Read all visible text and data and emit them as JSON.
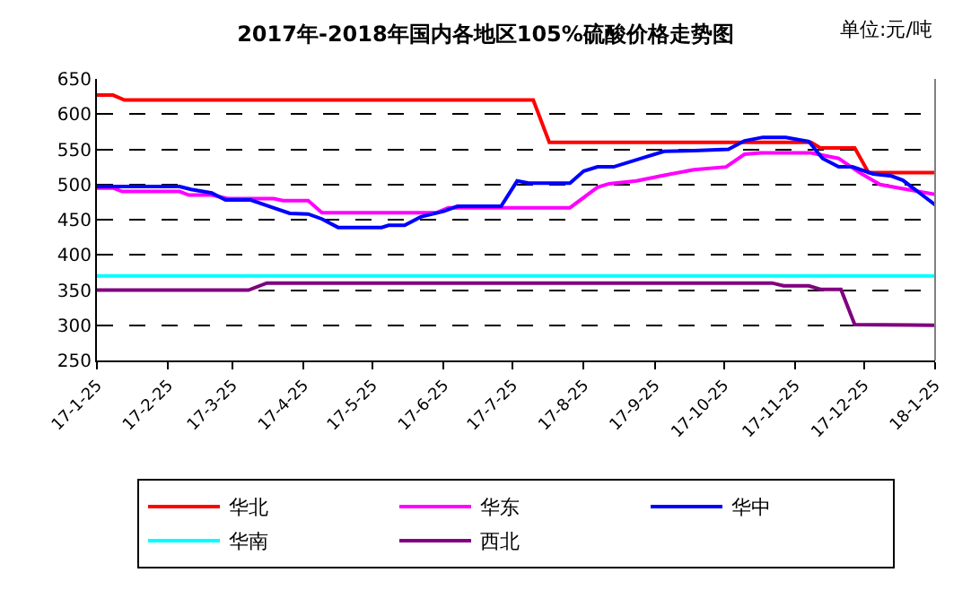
{
  "chart_data": {
    "type": "line",
    "title": "2017年-2018年国内各地区105%硫酸价格走势图",
    "annotations": [
      "单位:元/吨"
    ],
    "xlim": [
      "2017-01-25",
      "2018-01-25"
    ],
    "xticks": [
      {
        "value": "2017-01-25",
        "label": "17-1-25"
      },
      {
        "value": "2017-02-25",
        "label": "17-2-25"
      },
      {
        "value": "2017-03-25",
        "label": "17-3-25"
      },
      {
        "value": "2017-04-25",
        "label": "17-4-25"
      },
      {
        "value": "2017-05-25",
        "label": "17-5-25"
      },
      {
        "value": "2017-06-25",
        "label": "17-6-25"
      },
      {
        "value": "2017-07-25",
        "label": "17-7-25"
      },
      {
        "value": "2017-08-25",
        "label": "17-8-25"
      },
      {
        "value": "2017-09-25",
        "label": "17-9-25"
      },
      {
        "value": "2017-10-25",
        "label": "17-10-25"
      },
      {
        "value": "2017-11-25",
        "label": "17-11-25"
      },
      {
        "value": "2017-12-25",
        "label": "17-12-25"
      },
      {
        "value": "2018-01-25",
        "label": "18-1-25"
      }
    ],
    "ylim": [
      250,
      650
    ],
    "yticks": [
      250,
      300,
      350,
      400,
      450,
      500,
      550,
      600,
      650
    ],
    "grid": "y",
    "legend": "bottom",
    "marker": "none",
    "line_style": "solid",
    "series": [
      {
        "name": "华北",
        "color": "#ff0000",
        "x": [
          "2017-01-25",
          "2017-02-01",
          "2017-02-06",
          "2017-08-03",
          "2017-08-10",
          "2017-12-02",
          "2017-12-06",
          "2017-12-21",
          "2017-12-27",
          "2018-01-25"
        ],
        "values": [
          627,
          627,
          620,
          620,
          560,
          560,
          552,
          552,
          517,
          517
        ]
      },
      {
        "name": "华东",
        "color": "#ff00ff",
        "x": [
          "2017-01-25",
          "2017-02-01",
          "2017-02-05",
          "2017-03-02",
          "2017-03-06",
          "2017-03-16",
          "2017-03-23",
          "2017-04-12",
          "2017-04-16",
          "2017-04-27",
          "2017-05-03",
          "2017-06-22",
          "2017-06-27",
          "2017-08-19",
          "2017-08-31",
          "2017-09-05",
          "2017-09-17",
          "2017-09-29",
          "2017-10-12",
          "2017-10-26",
          "2017-11-03",
          "2017-11-10",
          "2017-12-02",
          "2017-12-14",
          "2017-12-23",
          "2018-01-01",
          "2018-01-11",
          "2018-01-25"
        ],
        "values": [
          495,
          495,
          490,
          490,
          485,
          485,
          480,
          480,
          477,
          477,
          460,
          460,
          467,
          467,
          496,
          501,
          505,
          513,
          521,
          525,
          543,
          545,
          545,
          537,
          517,
          500,
          494,
          486
        ]
      },
      {
        "name": "华中",
        "color": "#0000ff",
        "x": [
          "2017-01-25",
          "2017-03-02",
          "2017-03-07",
          "2017-03-16",
          "2017-03-22",
          "2017-04-02",
          "2017-04-10",
          "2017-04-19",
          "2017-04-27",
          "2017-05-03",
          "2017-05-10",
          "2017-05-29",
          "2017-06-01",
          "2017-06-08",
          "2017-06-15",
          "2017-06-25",
          "2017-07-01",
          "2017-07-20",
          "2017-07-27",
          "2017-08-01",
          "2017-08-19",
          "2017-08-25",
          "2017-08-31",
          "2017-09-07",
          "2017-09-19",
          "2017-09-29",
          "2017-10-12",
          "2017-10-27",
          "2017-11-03",
          "2017-11-11",
          "2017-11-21",
          "2017-12-01",
          "2017-12-07",
          "2017-12-14",
          "2017-12-20",
          "2017-12-29",
          "2018-01-06",
          "2018-01-11",
          "2018-01-25"
        ],
        "values": [
          497,
          497,
          493,
          488,
          478,
          478,
          469,
          459,
          458,
          451,
          439,
          439,
          442,
          442,
          454,
          462,
          469,
          469,
          505,
          502,
          502,
          519,
          525,
          525,
          537,
          547,
          548,
          550,
          562,
          567,
          567,
          561,
          537,
          525,
          525,
          515,
          512,
          506,
          471
        ]
      },
      {
        "name": "华南",
        "color": "#00ffff",
        "x": [
          "2017-01-25",
          "2018-01-25"
        ],
        "values": [
          370,
          370
        ]
      },
      {
        "name": "西北",
        "color": "#800080",
        "x": [
          "2017-01-25",
          "2017-04-01",
          "2017-04-09",
          "2017-11-15",
          "2017-11-20",
          "2017-12-01",
          "2017-12-06",
          "2017-12-15",
          "2017-12-21",
          "2018-01-25"
        ],
        "values": [
          350,
          350,
          360,
          360,
          356,
          356,
          351,
          351,
          301,
          300
        ]
      }
    ]
  }
}
